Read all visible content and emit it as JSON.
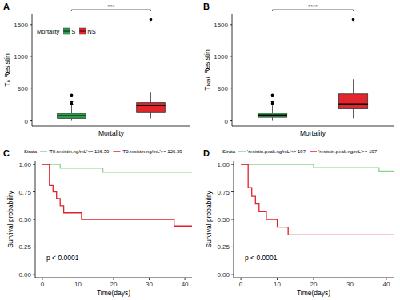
{
  "chart_data": [
    {
      "type": "box",
      "panel": "A",
      "ylabel": "T₀ Resistin",
      "xlabel": "Mortality",
      "legend_title": "Mortality",
      "legend": "top-left",
      "annotation": "***",
      "tick_labels": "y",
      "grid": false,
      "categories": [
        "S",
        "NS"
      ],
      "colors": [
        "#2e9b4e",
        "#e3262b"
      ],
      "min": [
        0,
        40
      ],
      "q1": [
        40,
        140
      ],
      "median": [
        80,
        240
      ],
      "q3": [
        120,
        285
      ],
      "max": [
        250,
        450
      ],
      "outliers": [
        [
          265,
          300,
          400
        ],
        [
          1580
        ]
      ],
      "ylim": [
        -80,
        1660
      ],
      "yticks": [
        0,
        500,
        1000,
        1500
      ]
    },
    {
      "type": "box",
      "panel": "B",
      "ylabel": "Tₚₑₐₖ Resistin",
      "xlabel": "Mortality",
      "annotation": "****",
      "tick_labels": "y",
      "grid": false,
      "categories": [
        "S",
        "NS"
      ],
      "colors": [
        "#2e9b4e",
        "#e3262b"
      ],
      "min": [
        0,
        40
      ],
      "q1": [
        55,
        200
      ],
      "median": [
        90,
        265
      ],
      "q3": [
        125,
        420
      ],
      "max": [
        240,
        650
      ],
      "outliers": [
        [
          270,
          300,
          400
        ],
        [
          1580
        ]
      ],
      "ylim": [
        -80,
        1660
      ],
      "yticks": [
        0,
        500,
        1000,
        1500
      ]
    },
    {
      "type": "line",
      "line_style": "step",
      "panel": "C",
      "legend_title": "Strata",
      "legend": "top",
      "annotation": "p < 0.0001",
      "xlabel": "Time(days)",
      "ylabel": "Survival probability",
      "grid": false,
      "series": [
        {
          "name": "'T0.resistin.ng/mL'<= 126.39",
          "color": "#8fd18f",
          "x": [
            0,
            5,
            17,
            42
          ],
          "values": [
            1,
            0.965,
            0.93,
            0.93
          ]
        },
        {
          "name": "'T0.resistin.ng/mL'>= 126.39",
          "color": "#e0202a",
          "x": [
            0,
            2,
            3,
            4,
            5,
            6,
            11,
            37,
            42
          ],
          "values": [
            1,
            0.81,
            0.75,
            0.69,
            0.625,
            0.56,
            0.5,
            0.44,
            0.44
          ]
        }
      ],
      "xlim": [
        -2,
        42
      ],
      "xticks": [
        0,
        10,
        20,
        30,
        40
      ],
      "ylim": [
        -0.03,
        1.03
      ],
      "yticks": [
        {
          "value": 0,
          "label": "0.00"
        },
        {
          "value": 0.25,
          "label": "0.25"
        },
        {
          "value": 0.5,
          "label": "0.50"
        },
        {
          "value": 0.75,
          "label": "0.75"
        },
        {
          "value": 1,
          "label": "1.00"
        }
      ]
    },
    {
      "type": "line",
      "line_style": "step",
      "panel": "D",
      "legend_title": "Strata",
      "legend": "top",
      "annotation": "p < 0.0001",
      "xlabel": "Time(days)",
      "ylabel": "Survival probability",
      "grid": false,
      "series": [
        {
          "name": "'resistin.peak.ng/mL'<= 197",
          "color": "#8fd18f",
          "x": [
            0,
            20,
            38,
            42
          ],
          "values": [
            1,
            0.97,
            0.94,
            0.94
          ]
        },
        {
          "name": "'resistin.peak.ng/mL'>= 197",
          "color": "#e0202a",
          "x": [
            0,
            2,
            3,
            4,
            5,
            7,
            10,
            13,
            42
          ],
          "values": [
            1,
            0.79,
            0.71,
            0.64,
            0.57,
            0.5,
            0.43,
            0.36,
            0.36
          ]
        }
      ],
      "xlim": [
        -2,
        42
      ],
      "xticks": [
        0,
        10,
        20,
        30,
        40
      ],
      "ylim": [
        -0.03,
        1.03
      ],
      "yticks": [
        {
          "value": 0,
          "label": "0.00"
        },
        {
          "value": 0.25,
          "label": "0.25"
        },
        {
          "value": 0.5,
          "label": "0.50"
        },
        {
          "value": 0.75,
          "label": "0.75"
        },
        {
          "value": 1,
          "label": "1.00"
        }
      ]
    }
  ]
}
